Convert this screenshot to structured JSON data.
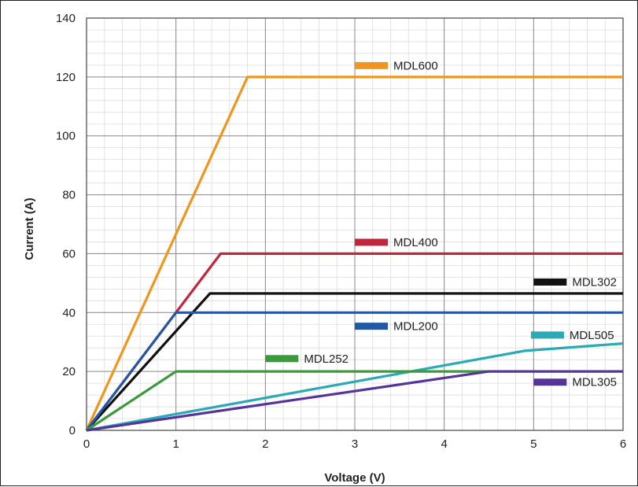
{
  "chart_data": {
    "type": "line",
    "title": "",
    "xlabel": "Voltage (V)",
    "ylabel": "Current (A)",
    "xlim": [
      0,
      6
    ],
    "ylim": [
      0,
      140
    ],
    "x_ticks": [
      "0",
      "1",
      "2",
      "3",
      "4",
      "5",
      "6"
    ],
    "y_ticks": [
      "0",
      "20",
      "40",
      "60",
      "80",
      "100",
      "120",
      "140"
    ],
    "grid": true,
    "legend": "inline labels",
    "series": [
      {
        "name": "MDL600",
        "color": "#f0961e",
        "points": [
          [
            0,
            0
          ],
          [
            1.8,
            120
          ],
          [
            6,
            120
          ]
        ],
        "legend_anchor": [
          3.0,
          124
        ]
      },
      {
        "name": "MDL400",
        "color": "#c0273c",
        "points": [
          [
            0,
            0
          ],
          [
            1.5,
            60
          ],
          [
            6,
            60
          ]
        ],
        "legend_anchor": [
          3.0,
          64
        ]
      },
      {
        "name": "MDL302",
        "color": "#111111",
        "points": [
          [
            0,
            0
          ],
          [
            1.38,
            46.5
          ],
          [
            6,
            46.5
          ]
        ],
        "legend_anchor": [
          5.0,
          50.5
        ]
      },
      {
        "name": "MDL200",
        "color": "#2458a6",
        "points": [
          [
            0,
            0
          ],
          [
            1.0,
            40
          ],
          [
            6,
            40
          ]
        ],
        "legend_anchor": [
          3.0,
          35.5
        ]
      },
      {
        "name": "MDL505",
        "color": "#2aaab5",
        "points": [
          [
            0,
            0
          ],
          [
            4.9,
            27
          ],
          [
            6,
            29.5
          ]
        ],
        "legend_anchor": [
          4.97,
          32.5
        ]
      },
      {
        "name": "MDL252",
        "color": "#3a9a3c",
        "points": [
          [
            0,
            0
          ],
          [
            1.0,
            20
          ],
          [
            4.5,
            20
          ]
        ],
        "legend_anchor": [
          2.0,
          24.5
        ]
      },
      {
        "name": "MDL305",
        "color": "#54339a",
        "points": [
          [
            0,
            0
          ],
          [
            4.5,
            20
          ],
          [
            6,
            20
          ]
        ],
        "legend_anchor": [
          5.0,
          16.5
        ]
      }
    ]
  }
}
